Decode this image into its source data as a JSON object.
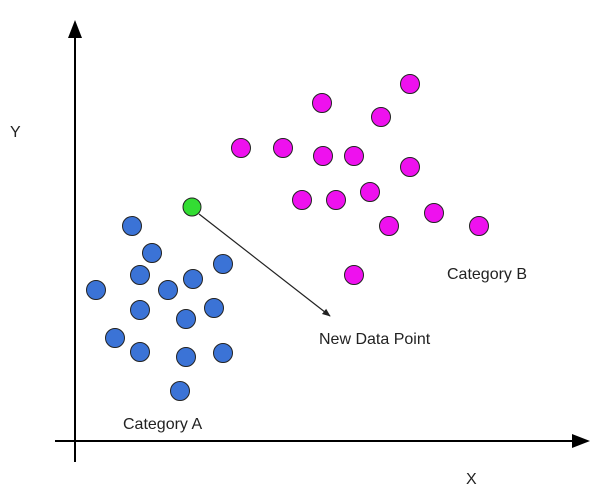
{
  "axes": {
    "x_label": "X",
    "y_label": "Y",
    "color": "#000000"
  },
  "labels": {
    "category_a": "Category A",
    "category_b": "Category B",
    "new_point": "New Data Point"
  },
  "colors": {
    "category_a": "#3b73d6",
    "category_b": "#ee11ee",
    "new_point": "#33dd33",
    "outline": "#222222"
  }
}
